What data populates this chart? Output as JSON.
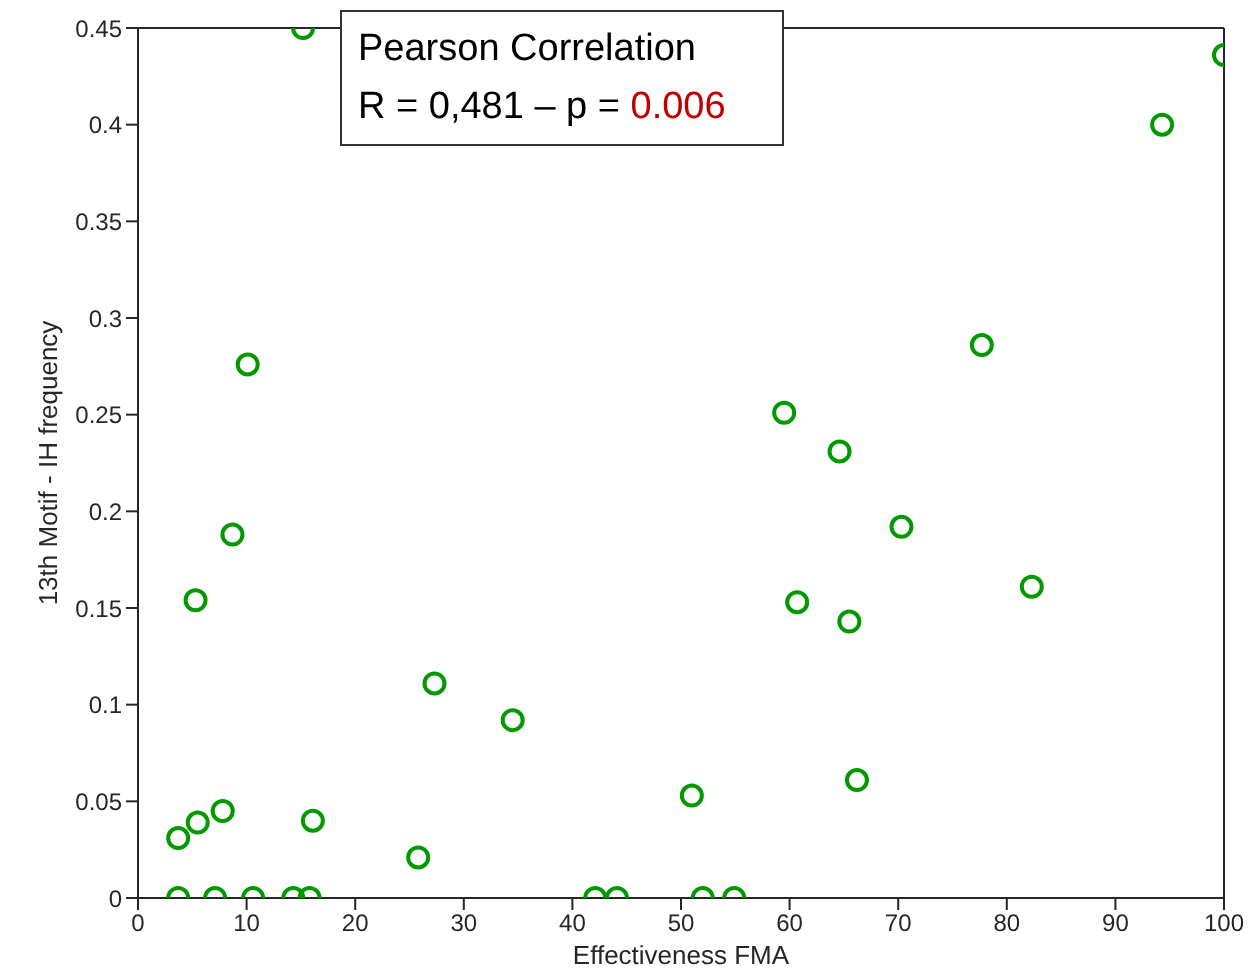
{
  "chart_data": {
    "type": "scatter",
    "xlabel": "Effectiveness FMA",
    "ylabel": "13th Motif - IH frequency",
    "annotations": [
      "Pearson Correlation",
      "R = 0,481 – p = 0.006"
    ],
    "xlim": [
      0,
      100
    ],
    "xticks": [
      0,
      10,
      20,
      30,
      40,
      50,
      60,
      70,
      80,
      90,
      100
    ],
    "ylim": [
      0,
      0.45
    ],
    "yticks": [
      0,
      0.05,
      0.1,
      0.15,
      0.2,
      0.25,
      0.3,
      0.35,
      0.4,
      0.45
    ],
    "marker": "circle",
    "legend": false,
    "series": [
      {
        "color": "#009900",
        "x": [
          15.2,
          100,
          94.3,
          77.7,
          10.1,
          59.5,
          64.6,
          8.7,
          70.3,
          5.3,
          60.7,
          82.3,
          65.5,
          27.3,
          34.5,
          3.7,
          5.5,
          7.8,
          16.1,
          25.8,
          51,
          66.2,
          3.7,
          7.1,
          10.6,
          14.3,
          15.8,
          42.1,
          44.1,
          52,
          54.9
        ],
        "values": [
          0.45,
          0.436,
          0.4,
          0.286,
          0.276,
          0.251,
          0.231,
          0.188,
          0.192,
          0.154,
          0.153,
          0.161,
          0.143,
          0.111,
          0.092,
          0.031,
          0.039,
          0.045,
          0.04,
          0.021,
          0.053,
          0.061,
          0,
          0,
          0,
          0,
          0,
          0,
          0,
          0,
          0
        ]
      }
    ]
  }
}
